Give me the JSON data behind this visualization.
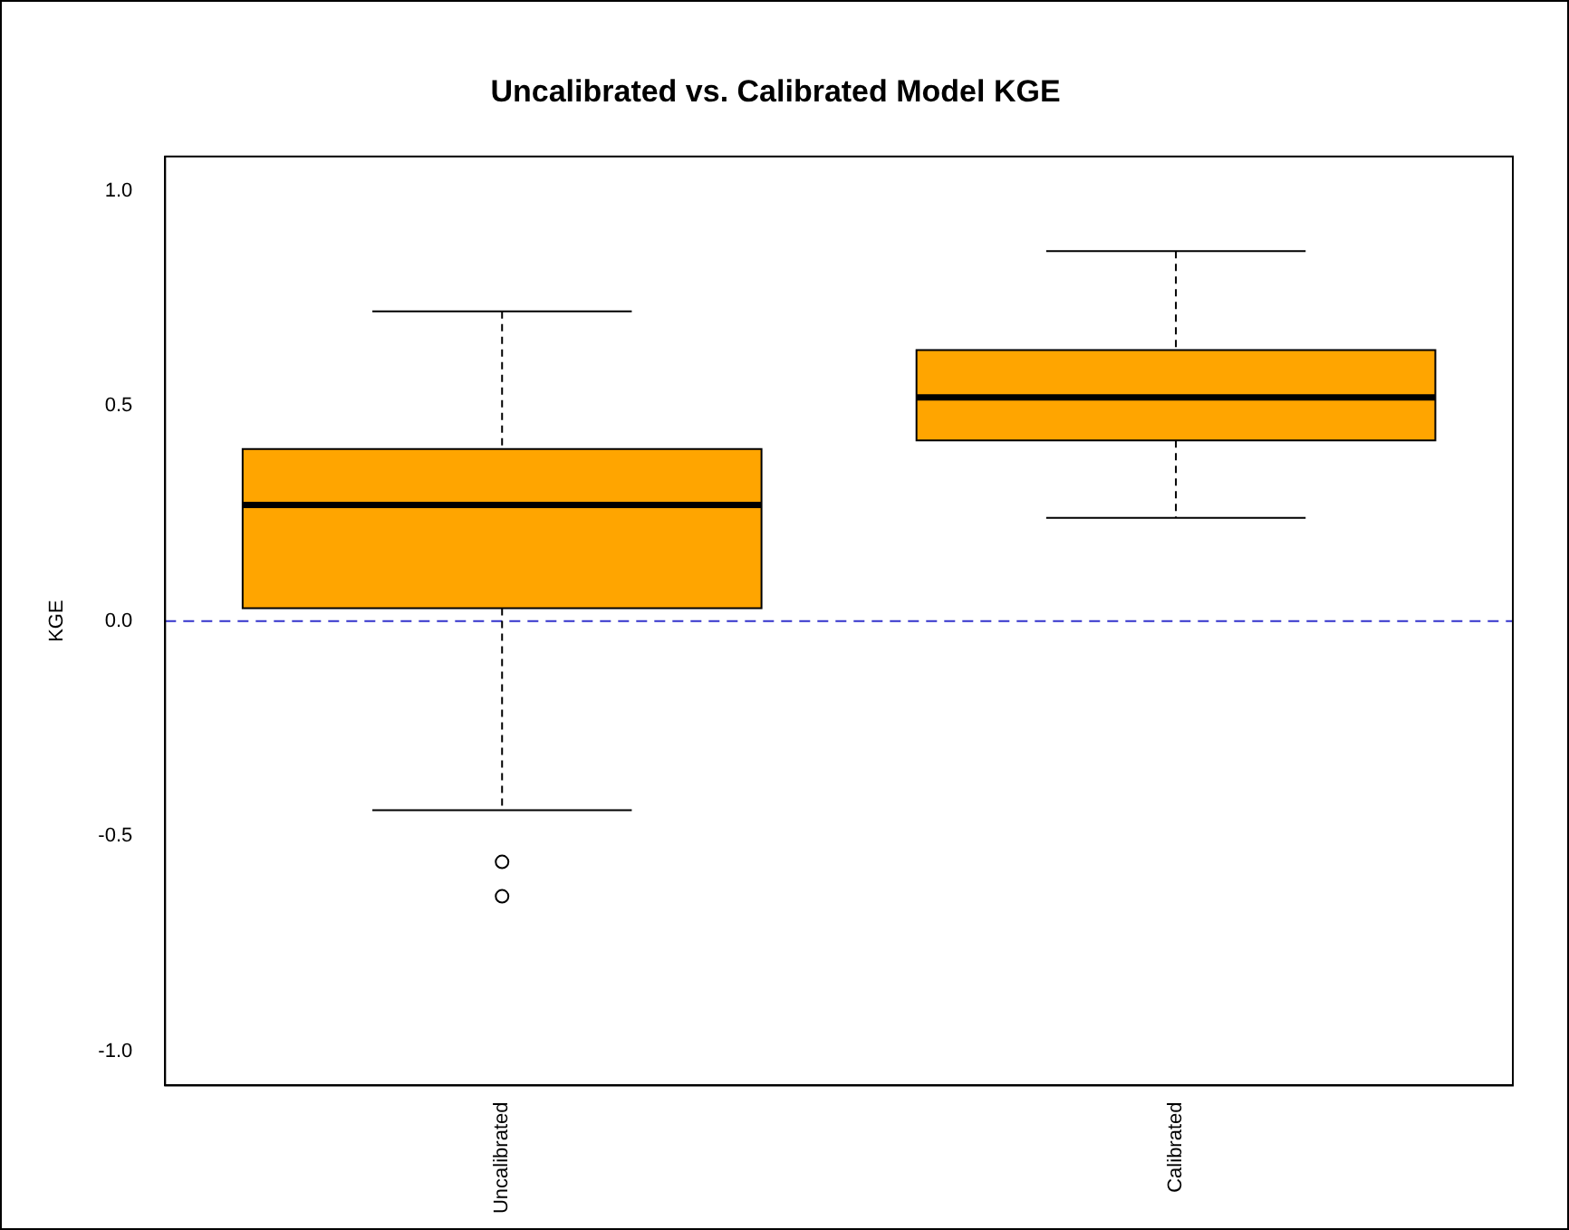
{
  "chart_data": {
    "type": "box",
    "title": "Uncalibrated vs. Calibrated Model KGE",
    "ylabel": "KGE",
    "categories": [
      "Uncalibrated",
      "Calibrated"
    ],
    "color": "#ffa500",
    "boxes": [
      {
        "low": -0.44,
        "q1": 0.03,
        "median": 0.27,
        "q3": 0.4,
        "high": 0.72,
        "outliers": [
          -0.56,
          -0.64
        ]
      },
      {
        "low": 0.24,
        "q1": 0.42,
        "median": 0.52,
        "q3": 0.63,
        "high": 0.86
      }
    ],
    "ylim": [
      -1.08,
      1.08
    ],
    "yticks": [
      {
        "value": -1,
        "label": "-1.0"
      },
      {
        "value": -0.5,
        "label": "-0.5"
      },
      {
        "value": 0,
        "label": "0.0"
      },
      {
        "value": 0.5,
        "label": "0.5"
      },
      {
        "value": 1,
        "label": "1.0"
      }
    ],
    "ref_lines": [
      {
        "axis": "y",
        "value": 0,
        "label": null,
        "color": "#3333cc",
        "line_style": "dashed"
      }
    ],
    "grid": false,
    "legend": false
  }
}
